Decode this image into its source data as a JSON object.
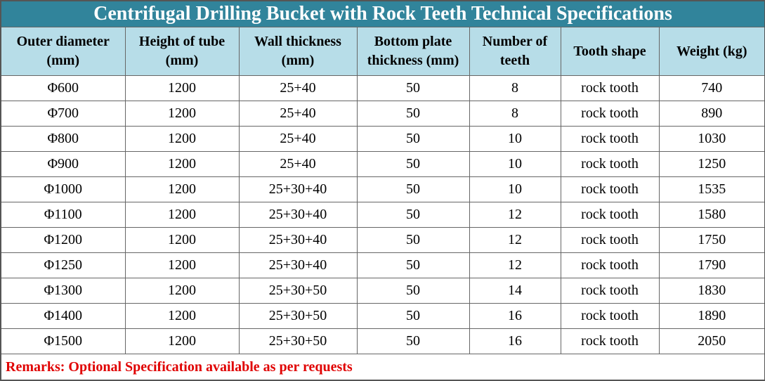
{
  "title": "Centrifugal Drilling Bucket with Rock Teeth Technical Specifications",
  "table": {
    "header": [
      "Outer diameter (mm)",
      "Height of tube (mm)",
      "Wall thickness (mm)",
      "Bottom plate thickness (mm)",
      "Number of teeth",
      "Tooth shape",
      "Weight (kg)"
    ],
    "rows": [
      [
        "Φ600",
        "1200",
        "25+40",
        "50",
        "8",
        "rock tooth",
        "740"
      ],
      [
        "Φ700",
        "1200",
        "25+40",
        "50",
        "8",
        "rock tooth",
        "890"
      ],
      [
        "Φ800",
        "1200",
        "25+40",
        "50",
        "10",
        "rock tooth",
        "1030"
      ],
      [
        "Φ900",
        "1200",
        "25+40",
        "50",
        "10",
        "rock tooth",
        "1250"
      ],
      [
        "Φ1000",
        "1200",
        "25+30+40",
        "50",
        "10",
        "rock tooth",
        "1535"
      ],
      [
        "Φ1100",
        "1200",
        "25+30+40",
        "50",
        "12",
        "rock tooth",
        "1580"
      ],
      [
        "Φ1200",
        "1200",
        "25+30+40",
        "50",
        "12",
        "rock tooth",
        "1750"
      ],
      [
        "Φ1250",
        "1200",
        "25+30+40",
        "50",
        "12",
        "rock tooth",
        "1790"
      ],
      [
        "Φ1300",
        "1200",
        "25+30+50",
        "50",
        "14",
        "rock tooth",
        "1830"
      ],
      [
        "Φ1400",
        "1200",
        "25+30+50",
        "50",
        "16",
        "rock tooth",
        "1890"
      ],
      [
        "Φ1500",
        "1200",
        "25+30+50",
        "50",
        "16",
        "rock tooth",
        "2050"
      ]
    ]
  },
  "remarks": "Remarks: Optional Specification available as per requests"
}
